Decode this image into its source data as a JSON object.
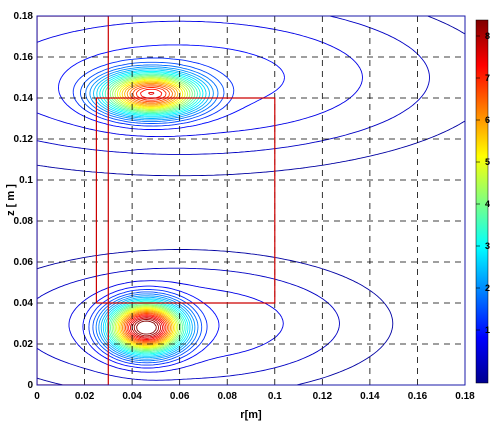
{
  "chart_data": {
    "type": "contour",
    "xlabel": "r[m]",
    "ylabel": "z [ m ]",
    "xlim": [
      0,
      0.18
    ],
    "ylim": [
      0,
      0.18
    ],
    "xticks": [
      "0",
      "0.02",
      "0.04",
      "0.06",
      "0.08",
      "0.1",
      "0.12",
      "0.14",
      "0.16",
      "0.18"
    ],
    "yticks": [
      "0",
      "0.02",
      "0.04",
      "0.06",
      "0.08",
      "0.1",
      "0.12",
      "0.14",
      "0.16",
      "0.18"
    ],
    "grid": true,
    "grid_style": "dashed",
    "geometry_outline_color": "#cc0000",
    "geometry_outline": [
      [
        [
          0,
          0
        ],
        [
          0.03,
          0
        ],
        [
          0.03,
          0.18
        ],
        [
          0,
          0.18
        ],
        [
          0,
          0
        ]
      ],
      [
        [
          0.025,
          0.04
        ],
        [
          0.1,
          0.04
        ],
        [
          0.1,
          0.14
        ],
        [
          0.025,
          0.14
        ],
        [
          0.025,
          0.04
        ]
      ]
    ],
    "hotspots": [
      {
        "center": [
          0.046,
          0.028
        ],
        "sigma": [
          0.009,
          0.007
        ],
        "peak": 1.0
      },
      {
        "center": [
          0.048,
          0.142
        ],
        "sigma": [
          0.012,
          0.006
        ],
        "peak": 0.75
      }
    ],
    "contour_levels": 30,
    "colormap": "jet",
    "colorbar": {
      "position": "right",
      "tick_labels": [
        "8",
        "7",
        "6",
        "5",
        "4",
        "3",
        "2",
        "1"
      ]
    },
    "colors": {
      "axes": "#000000",
      "frame": "#1a1aa8",
      "grid": "#000000"
    }
  }
}
